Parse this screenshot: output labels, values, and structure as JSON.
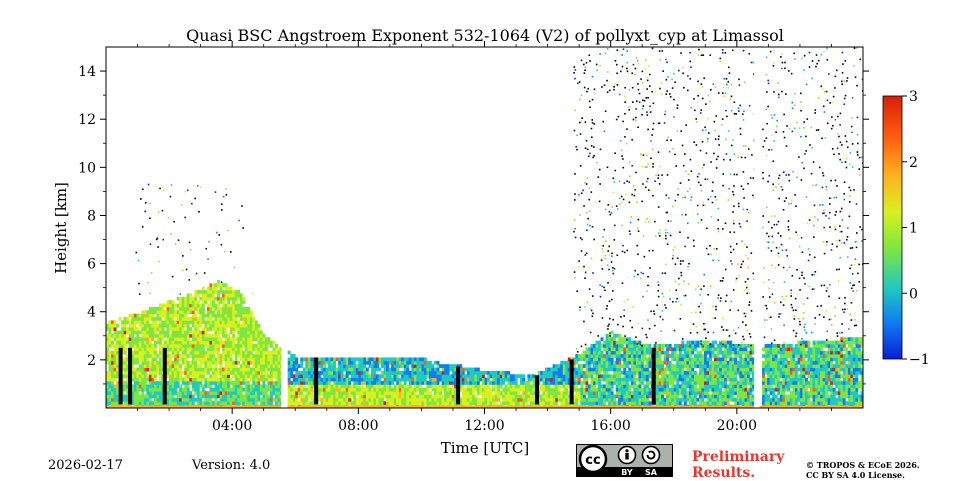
{
  "chart_data": {
    "type": "heatmap",
    "title": "Quasi BSC Angstroem Exponent 532-1064 (V2) of pollyxt_cyp at Limassol",
    "xlabel": "Time [UTC]",
    "ylabel": "Height [km]",
    "xlim_hours": [
      0,
      24
    ],
    "ylim_km": [
      0,
      15
    ],
    "x_ticks": [
      {
        "hour": 4,
        "label": "04:00"
      },
      {
        "hour": 8,
        "label": "08:00"
      },
      {
        "hour": 12,
        "label": "12:00"
      },
      {
        "hour": 16,
        "label": "16:00"
      },
      {
        "hour": 20,
        "label": "20:00"
      }
    ],
    "y_ticks": [
      {
        "km": 2,
        "label": "2"
      },
      {
        "km": 4,
        "label": "4"
      },
      {
        "km": 6,
        "label": "6"
      },
      {
        "km": 8,
        "label": "8"
      },
      {
        "km": 10,
        "label": "10"
      },
      {
        "km": 12,
        "label": "12"
      },
      {
        "km": 14,
        "label": "14"
      }
    ],
    "colorbar": {
      "min": -1,
      "max": 3,
      "ticks": [
        {
          "value": -1,
          "label": "−1"
        },
        {
          "value": 0,
          "label": "0"
        },
        {
          "value": 1,
          "label": "1"
        },
        {
          "value": 2,
          "label": "2"
        },
        {
          "value": 3,
          "label": "3"
        }
      ],
      "colors": [
        "#0a1fd8",
        "#0e7ef0",
        "#21c9c0",
        "#7fe640",
        "#d8f020",
        "#ffb020",
        "#ff5a10",
        "#d81e06"
      ]
    },
    "data_gaps_hours": [
      {
        "start": 5.55,
        "end": 5.75
      },
      {
        "start": 20.55,
        "end": 20.72
      }
    ],
    "mixing_layer_top_km": [
      {
        "hour": 0.0,
        "km": 3.5
      },
      {
        "hour": 1.0,
        "km": 3.9
      },
      {
        "hour": 1.6,
        "km": 4.2
      },
      {
        "hour": 2.5,
        "km": 4.6
      },
      {
        "hour": 3.5,
        "km": 5.2
      },
      {
        "hour": 4.2,
        "km": 4.8
      },
      {
        "hour": 5.0,
        "km": 2.9
      },
      {
        "hour": 5.5,
        "km": 2.5
      },
      {
        "hour": 6.0,
        "km": 2.1
      },
      {
        "hour": 8.0,
        "km": 2.1
      },
      {
        "hour": 10.0,
        "km": 2.0
      },
      {
        "hour": 12.0,
        "km": 1.5
      },
      {
        "hour": 13.5,
        "km": 1.3
      },
      {
        "hour": 15.0,
        "km": 2.2
      },
      {
        "hour": 16.0,
        "km": 3.1
      },
      {
        "hour": 17.0,
        "km": 2.6
      },
      {
        "hour": 19.0,
        "km": 2.7
      },
      {
        "hour": 21.0,
        "km": 2.6
      },
      {
        "hour": 22.5,
        "km": 2.7
      },
      {
        "hour": 24.0,
        "km": 2.9
      }
    ]
  },
  "footer": {
    "date": "2026-02-17",
    "version": "Version: 4.0",
    "preliminary_line1": "Preliminary",
    "preliminary_line2": "Results.",
    "copyright_line1": "© TROPOS & ECoE 2026.",
    "copyright_line2": "CC BY SA 4.0 License.",
    "license_badge": {
      "cc": "cc",
      "by": "BY",
      "sa": "SA"
    }
  }
}
